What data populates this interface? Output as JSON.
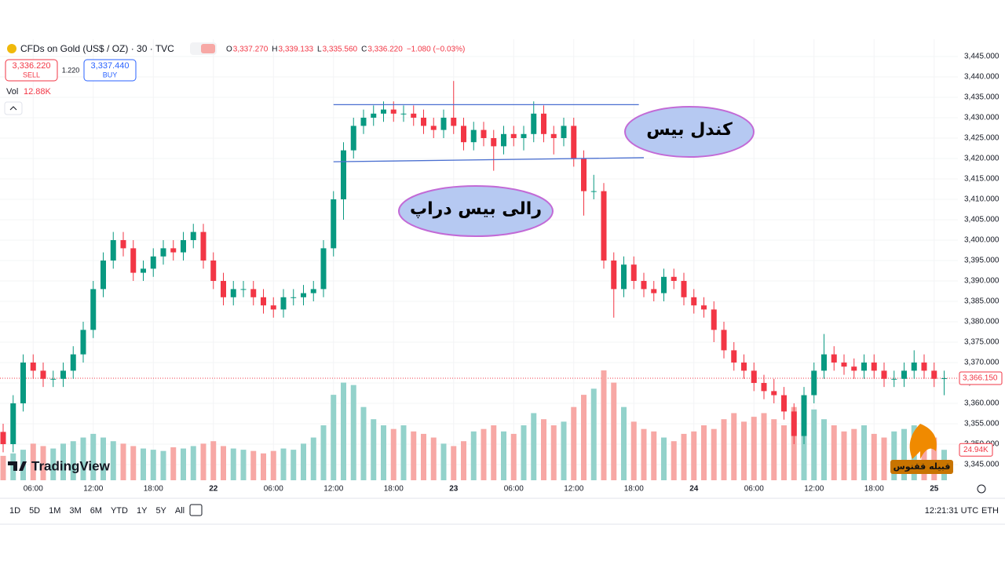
{
  "header": {
    "symbol": "CFDs on Gold (US$ / OZ) · 30 · TVC",
    "ohlc": [
      "O",
      "3,337.270",
      "H",
      "3,339.133",
      "L",
      "3,335.560",
      "C",
      "3,336.220",
      "−1.080 (−0.03%)"
    ],
    "sell_price": "3,336.220",
    "sell": "SELL",
    "spread": "1.220",
    "buy_price": "3,337.440",
    "buy": "BUY",
    "vol": "Vol",
    "vol_value": "12.88K"
  },
  "chart_data": {
    "type": "candlestick",
    "candles": [
      [
        3353,
        3355,
        3348,
        3350
      ],
      [
        3350,
        3362,
        3348,
        3360
      ],
      [
        3360,
        3372,
        3358,
        3370
      ],
      [
        3370,
        3372,
        3366,
        3368
      ],
      [
        3368,
        3370,
        3364,
        3366
      ],
      [
        3366,
        3368,
        3364,
        3366
      ],
      [
        3366,
        3370,
        3364,
        3368
      ],
      [
        3368,
        3374,
        3366,
        3372
      ],
      [
        3372,
        3380,
        3370,
        3378
      ],
      [
        3378,
        3390,
        3376,
        3388
      ],
      [
        3388,
        3397,
        3386,
        3395
      ],
      [
        3395,
        3402,
        3393,
        3400
      ],
      [
        3400,
        3402,
        3396,
        3398
      ],
      [
        3398,
        3400,
        3390,
        3392
      ],
      [
        3392,
        3395,
        3390,
        3393
      ],
      [
        3393,
        3398,
        3391,
        3396
      ],
      [
        3396,
        3400,
        3394,
        3398
      ],
      [
        3398,
        3400,
        3395,
        3397
      ],
      [
        3397,
        3402,
        3395,
        3400
      ],
      [
        3400,
        3404,
        3398,
        3402
      ],
      [
        3402,
        3404,
        3393,
        3395
      ],
      [
        3395,
        3397,
        3388,
        3390
      ],
      [
        3390,
        3392,
        3384,
        3386
      ],
      [
        3386,
        3390,
        3384,
        3388
      ],
      [
        3388,
        3390,
        3386,
        3388
      ],
      [
        3388,
        3390,
        3384,
        3386
      ],
      [
        3386,
        3388,
        3382,
        3384
      ],
      [
        3384,
        3386,
        3381,
        3383
      ],
      [
        3383,
        3388,
        3381,
        3386
      ],
      [
        3386,
        3388,
        3384,
        3386
      ],
      [
        3386,
        3389,
        3384,
        3387
      ],
      [
        3387,
        3390,
        3385,
        3388
      ],
      [
        3388,
        3400,
        3386,
        3398
      ],
      [
        3398,
        3412,
        3396,
        3410
      ],
      [
        3410,
        3424,
        3405,
        3422
      ],
      [
        3422,
        3430,
        3420,
        3428
      ],
      [
        3428,
        3432,
        3426,
        3430
      ],
      [
        3430,
        3433,
        3428,
        3431
      ],
      [
        3431,
        3434,
        3429,
        3432
      ],
      [
        3432,
        3434,
        3429,
        3431
      ],
      [
        3431,
        3433,
        3429,
        3431
      ],
      [
        3431,
        3433,
        3428,
        3430
      ],
      [
        3430,
        3432,
        3426,
        3428
      ],
      [
        3428,
        3430,
        3425,
        3427
      ],
      [
        3427,
        3432,
        3425,
        3430
      ],
      [
        3430,
        3439,
        3426,
        3428
      ],
      [
        3428,
        3430,
        3422,
        3424
      ],
      [
        3424,
        3429,
        3422,
        3427
      ],
      [
        3427,
        3429,
        3423,
        3425
      ],
      [
        3425,
        3427,
        3417,
        3423
      ],
      [
        3423,
        3428,
        3421,
        3426
      ],
      [
        3426,
        3428,
        3423,
        3425
      ],
      [
        3425,
        3428,
        3422,
        3426
      ],
      [
        3426,
        3434,
        3424,
        3431
      ],
      [
        3431,
        3433,
        3424,
        3426
      ],
      [
        3426,
        3428,
        3421,
        3425
      ],
      [
        3425,
        3430,
        3423,
        3428
      ],
      [
        3428,
        3430,
        3418,
        3420
      ],
      [
        3420,
        3422,
        3406,
        3412
      ],
      [
        3412,
        3416,
        3410,
        3412
      ],
      [
        3412,
        3414,
        3393,
        3395
      ],
      [
        3395,
        3397,
        3381,
        3388
      ],
      [
        3388,
        3396,
        3386,
        3394
      ],
      [
        3394,
        3396,
        3388,
        3390
      ],
      [
        3390,
        3392,
        3386,
        3388
      ],
      [
        3388,
        3390,
        3385,
        3387
      ],
      [
        3387,
        3393,
        3385,
        3391
      ],
      [
        3391,
        3393,
        3388,
        3390
      ],
      [
        3390,
        3392,
        3384,
        3386
      ],
      [
        3386,
        3388,
        3382,
        3384
      ],
      [
        3384,
        3386,
        3381,
        3383
      ],
      [
        3383,
        3385,
        3375,
        3378
      ],
      [
        3378,
        3380,
        3371,
        3373
      ],
      [
        3373,
        3375,
        3368,
        3370
      ],
      [
        3370,
        3372,
        3366,
        3368
      ],
      [
        3368,
        3370,
        3363,
        3365
      ],
      [
        3365,
        3367,
        3361,
        3363
      ],
      [
        3363,
        3366,
        3360,
        3362
      ],
      [
        3362,
        3364,
        3356,
        3358
      ],
      [
        3358,
        3360,
        3350,
        3352
      ],
      [
        3352,
        3364,
        3350,
        3362
      ],
      [
        3362,
        3370,
        3360,
        3368
      ],
      [
        3368,
        3377,
        3366,
        3372
      ],
      [
        3372,
        3374,
        3368,
        3370
      ],
      [
        3370,
        3372,
        3367,
        3369
      ],
      [
        3369,
        3371,
        3366,
        3368
      ],
      [
        3368,
        3372,
        3366,
        3370
      ],
      [
        3370,
        3372,
        3366,
        3368
      ],
      [
        3368,
        3370,
        3364,
        3366
      ],
      [
        3366,
        3368,
        3364,
        3366
      ],
      [
        3366,
        3370,
        3364,
        3368
      ],
      [
        3368,
        3373,
        3366,
        3370
      ],
      [
        3370,
        3372,
        3366,
        3368
      ],
      [
        3368,
        3370,
        3364,
        3366
      ],
      [
        3366,
        3368,
        3362,
        3366.15
      ]
    ],
    "volumes": [
      20,
      22,
      25,
      30,
      28,
      26,
      30,
      32,
      35,
      38,
      35,
      32,
      30,
      28,
      26,
      25,
      24,
      27,
      26,
      28,
      30,
      32,
      28,
      26,
      25,
      24,
      22,
      24,
      26,
      25,
      30,
      35,
      45,
      70,
      80,
      78,
      60,
      50,
      45,
      42,
      45,
      40,
      38,
      35,
      30,
      28,
      32,
      40,
      42,
      45,
      40,
      38,
      45,
      55,
      50,
      45,
      48,
      60,
      70,
      75,
      90,
      80,
      60,
      48,
      42,
      40,
      35,
      32,
      38,
      40,
      45,
      42,
      50,
      55,
      48,
      52,
      55,
      50,
      45,
      60,
      62,
      58,
      50,
      45,
      40,
      42,
      45,
      38,
      35,
      40,
      42,
      45,
      38,
      35,
      24.94
    ],
    "up_color": "#089981",
    "down_color": "#f23645",
    "volume_up_color": "#93d2cb",
    "volume_down_color": "#f7a8a5",
    "ylim": [
      3341.15,
      3449.23
    ],
    "vlim": [
      0,
      90
    ],
    "yticks": [
      {
        "value": 3345,
        "label": "3,345.000"
      },
      {
        "value": 3350,
        "label": "3,350.000"
      },
      {
        "value": 3355,
        "label": "3,355.000"
      },
      {
        "value": 3360,
        "label": "3,360.000"
      },
      {
        "value": 3365,
        "label": "3,365.000"
      },
      {
        "value": 3370,
        "label": "3,370.000"
      },
      {
        "value": 3375,
        "label": "3,375.000"
      },
      {
        "value": 3380,
        "label": "3,380.000"
      },
      {
        "value": 3385,
        "label": "3,385.000"
      },
      {
        "value": 3390,
        "label": "3,390.000"
      },
      {
        "value": 3395,
        "label": "3,395.000"
      },
      {
        "value": 3400,
        "label": "3,400.000"
      },
      {
        "value": 3405,
        "label": "3,405.000"
      },
      {
        "value": 3410,
        "label": "3,410.000"
      },
      {
        "value": 3415,
        "label": "3,415.000"
      },
      {
        "value": 3420,
        "label": "3,420.000"
      },
      {
        "value": 3425,
        "label": "3,425.000"
      },
      {
        "value": 3430,
        "label": "3,430.000"
      },
      {
        "value": 3435,
        "label": "3,435.000"
      },
      {
        "value": 3440,
        "label": "3,440.000"
      },
      {
        "value": 3445,
        "label": "3,445.000"
      }
    ],
    "xticks": [
      {
        "value": 3,
        "label": "06:00"
      },
      {
        "value": 9,
        "label": "12:00"
      },
      {
        "value": 15,
        "label": "18:00"
      },
      {
        "value": 21,
        "label": "22"
      },
      {
        "value": 27,
        "label": "06:00"
      },
      {
        "value": 33,
        "label": "12:00"
      },
      {
        "value": 39,
        "label": "18:00"
      },
      {
        "value": 45,
        "label": "23"
      },
      {
        "value": 51,
        "label": "06:00"
      },
      {
        "value": 57,
        "label": "12:00"
      },
      {
        "value": 63,
        "label": "18:00"
      },
      {
        "value": 69,
        "label": "24"
      },
      {
        "value": 75,
        "label": "06:00"
      },
      {
        "value": 81,
        "label": "12:00"
      },
      {
        "value": 87,
        "label": "18:00"
      },
      {
        "value": 93,
        "label": "25"
      }
    ],
    "last_price": {
      "value": 3366.15,
      "label": "3,366.150"
    },
    "last_volume": {
      "value": 24.94,
      "label": "24.94K"
    },
    "lines": [
      {
        "start": 33,
        "end": 63.5,
        "y0": 3433.2,
        "y1": 3433.2,
        "color": "#4a6fd0"
      },
      {
        "start": 33,
        "end": 64,
        "y0": 3419.2,
        "y1": 3420.2,
        "color": "#4a6fd0"
      }
    ],
    "annotations": [
      "کندل بیس",
      "رالی بیس دراپ"
    ]
  },
  "toolbar": {
    "ranges": [
      "1D",
      "5D",
      "1M",
      "3M",
      "6M",
      "YTD",
      "1Y",
      "5Y",
      "All"
    ],
    "clock": "12:21:31 UTC",
    "session": "ETH"
  },
  "branding": {
    "tradingview": "TradingView",
    "watermark": "قبیله ققنوس"
  }
}
